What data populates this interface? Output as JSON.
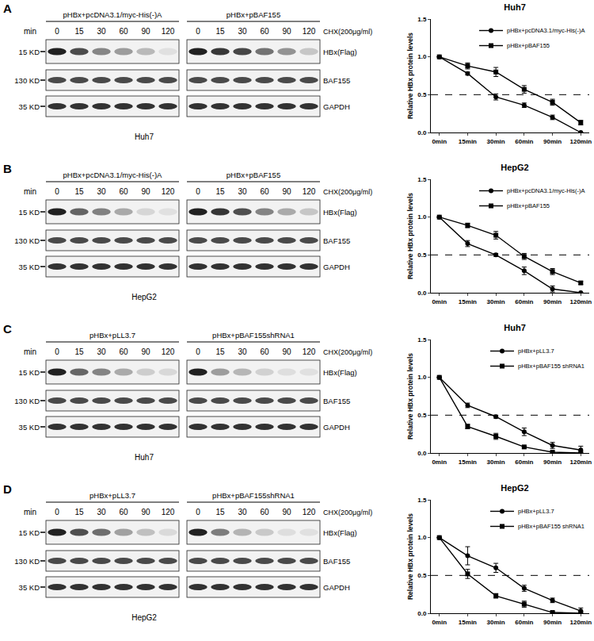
{
  "chart_data": [
    {
      "type": "line",
      "title": "Huh7",
      "y_label": "Relative HBx protein levels",
      "categories": [
        "0min",
        "15min",
        "30min",
        "60min",
        "90min",
        "120min"
      ],
      "ylim": [
        0,
        1.5
      ],
      "yticks": [
        {
          "value": 0,
          "label": "0.0"
        },
        {
          "value": 0.5,
          "label": "0.5"
        },
        {
          "value": 1,
          "label": "1.0"
        },
        {
          "value": 1.5,
          "label": "1.5"
        }
      ],
      "grid": false,
      "legend": "top right",
      "reference_line": {
        "value": 0.5,
        "line_style": "dashed"
      },
      "series": [
        {
          "name": "pHBx+pcDNA3.1/myc-His(-)A",
          "color": "#000000",
          "marker": "circle",
          "line_style": "solid",
          "values": [
            1,
            0.78,
            0.47,
            0.36,
            0.2,
            0.0
          ],
          "errors": [
            0,
            0.02,
            0.04,
            0.03,
            0.03,
            0
          ]
        },
        {
          "name": "pHBx+pBAF155",
          "color": "#000000",
          "marker": "square",
          "line_style": "solid",
          "values": [
            1,
            0.88,
            0.8,
            0.57,
            0.4,
            0.13
          ],
          "errors": [
            0,
            0.04,
            0.06,
            0.05,
            0.04,
            0.03
          ]
        }
      ]
    },
    {
      "type": "line",
      "title": "HepG2",
      "y_label": "Relative HBx protein levels",
      "categories": [
        "0min",
        "15min",
        "30min",
        "60min",
        "90min",
        "120min"
      ],
      "ylim": [
        0,
        1.5
      ],
      "yticks": [
        {
          "value": 0,
          "label": "0.0"
        },
        {
          "value": 0.5,
          "label": "0.5"
        },
        {
          "value": 1,
          "label": "1.0"
        },
        {
          "value": 1.5,
          "label": "1.5"
        }
      ],
      "grid": false,
      "legend": "top right",
      "reference_line": {
        "value": 0.5,
        "line_style": "dashed"
      },
      "series": [
        {
          "name": "pHBx+pcDNA3.1/myc-His(-)A",
          "color": "#000000",
          "marker": "circle",
          "line_style": "solid",
          "values": [
            1,
            0.65,
            0.5,
            0.29,
            0.05,
            0.0
          ],
          "errors": [
            0,
            0.04,
            0.02,
            0.05,
            0.04,
            0
          ]
        },
        {
          "name": "pHBx+pBAF155",
          "color": "#000000",
          "marker": "square",
          "line_style": "solid",
          "values": [
            1,
            0.89,
            0.76,
            0.48,
            0.28,
            0.13
          ],
          "errors": [
            0,
            0.03,
            0.05,
            0.04,
            0.04,
            0.02
          ]
        }
      ]
    },
    {
      "type": "line",
      "title": "Huh7",
      "y_label": "Relative HBx protein levels",
      "categories": [
        "0min",
        "15min",
        "30min",
        "60min",
        "90min",
        "120min"
      ],
      "ylim": [
        0,
        1.5
      ],
      "yticks": [
        {
          "value": 0,
          "label": "0.0"
        },
        {
          "value": 0.5,
          "label": "0.5"
        },
        {
          "value": 1,
          "label": "1.0"
        },
        {
          "value": 1.5,
          "label": "1.5"
        }
      ],
      "grid": false,
      "legend": "top right",
      "reference_line": {
        "value": 0.5,
        "line_style": "dashed"
      },
      "series": [
        {
          "name": "pHBx+pLL3.7",
          "color": "#000000",
          "marker": "circle",
          "line_style": "solid",
          "values": [
            1,
            0.63,
            0.48,
            0.28,
            0.1,
            0.04
          ],
          "errors": [
            0,
            0.03,
            0.02,
            0.05,
            0.04,
            0.05
          ]
        },
        {
          "name": "pHBx+pBAF155 shRNA1",
          "color": "#000000",
          "marker": "square",
          "line_style": "solid",
          "values": [
            1,
            0.35,
            0.22,
            0.08,
            0.01,
            0.0
          ],
          "errors": [
            0,
            0.03,
            0.04,
            0.01,
            0.01,
            0
          ]
        }
      ]
    },
    {
      "type": "line",
      "title": "HepG2",
      "y_label": "Relative HBx protein levels",
      "categories": [
        "0min",
        "15min",
        "30min",
        "60min",
        "90min",
        "120min"
      ],
      "ylim": [
        0,
        1.5
      ],
      "yticks": [
        {
          "value": 0,
          "label": "0.0"
        },
        {
          "value": 0.5,
          "label": "0.5"
        },
        {
          "value": 1,
          "label": "1.0"
        },
        {
          "value": 1.5,
          "label": "1.5"
        }
      ],
      "grid": false,
      "legend": "top right",
      "reference_line": {
        "value": 0.5,
        "line_style": "dashed"
      },
      "series": [
        {
          "name": "pHBx+pLL3.7",
          "color": "#000000",
          "marker": "circle",
          "line_style": "solid",
          "values": [
            1,
            0.76,
            0.6,
            0.33,
            0.17,
            0.03
          ],
          "errors": [
            0,
            0.12,
            0.06,
            0.04,
            0.03,
            0.04
          ]
        },
        {
          "name": "pHBx+pBAF155 shRNA1",
          "color": "#000000",
          "marker": "square",
          "line_style": "solid",
          "values": [
            1,
            0.52,
            0.23,
            0.12,
            0.01,
            0.0
          ],
          "errors": [
            0,
            0.06,
            0.03,
            0.04,
            0.01,
            0
          ]
        }
      ]
    }
  ],
  "blots": [
    {
      "label": "A",
      "headers": [
        "pHBx+pcDNA3.1/myc-His(-)A",
        "pHBx+pBAF155"
      ],
      "time_unit": "min",
      "lanes": [
        "0",
        "15",
        "30",
        "60",
        "90",
        "120"
      ],
      "treatment": "CHX(200μg/ml)",
      "rows": [
        {
          "size": "15 KD",
          "protein": "HBx(Flag)"
        },
        {
          "size": "130 KD",
          "protein": "BAF155"
        },
        {
          "size": "35 KD",
          "protein": "GAPDH"
        }
      ],
      "cell_line": "Huh7"
    },
    {
      "label": "B",
      "headers": [
        "pHBx+pcDNA3.1/myc-His(-)A",
        "pHBx+pBAF155"
      ],
      "time_unit": "min",
      "lanes": [
        "0",
        "15",
        "30",
        "60",
        "90",
        "120"
      ],
      "treatment": "CHX(200μg/ml)",
      "rows": [
        {
          "size": "15 KD",
          "protein": "HBx(Flag)"
        },
        {
          "size": "130 KD",
          "protein": "BAF155"
        },
        {
          "size": "35 KD",
          "protein": "GAPDH"
        }
      ],
      "cell_line": "HepG2"
    },
    {
      "label": "C",
      "headers": [
        "pHBx+pLL3.7",
        "pHBx+pBAF155shRNA1"
      ],
      "time_unit": "min",
      "lanes": [
        "0",
        "15",
        "30",
        "60",
        "90",
        "120"
      ],
      "treatment": "CHX(200μg/ml)",
      "rows": [
        {
          "size": "15 KD",
          "protein": "HBx(Flag)"
        },
        {
          "size": "130 KD",
          "protein": "BAF155"
        },
        {
          "size": "35 KD",
          "protein": "GAPDH"
        }
      ],
      "cell_line": "Huh7"
    },
    {
      "label": "D",
      "headers": [
        "pHBx+pLL3.7",
        "pHBx+pBAF155shRNA1"
      ],
      "time_unit": "min",
      "lanes": [
        "0",
        "15",
        "30",
        "60",
        "90",
        "120"
      ],
      "treatment": "CHX(200μg/ml)",
      "rows": [
        {
          "size": "15 KD",
          "protein": "HBx(Flag)"
        },
        {
          "size": "130 KD",
          "protein": "BAF155"
        },
        {
          "size": "35 KD",
          "protein": "GAPDH"
        }
      ],
      "cell_line": "HepG2"
    }
  ]
}
